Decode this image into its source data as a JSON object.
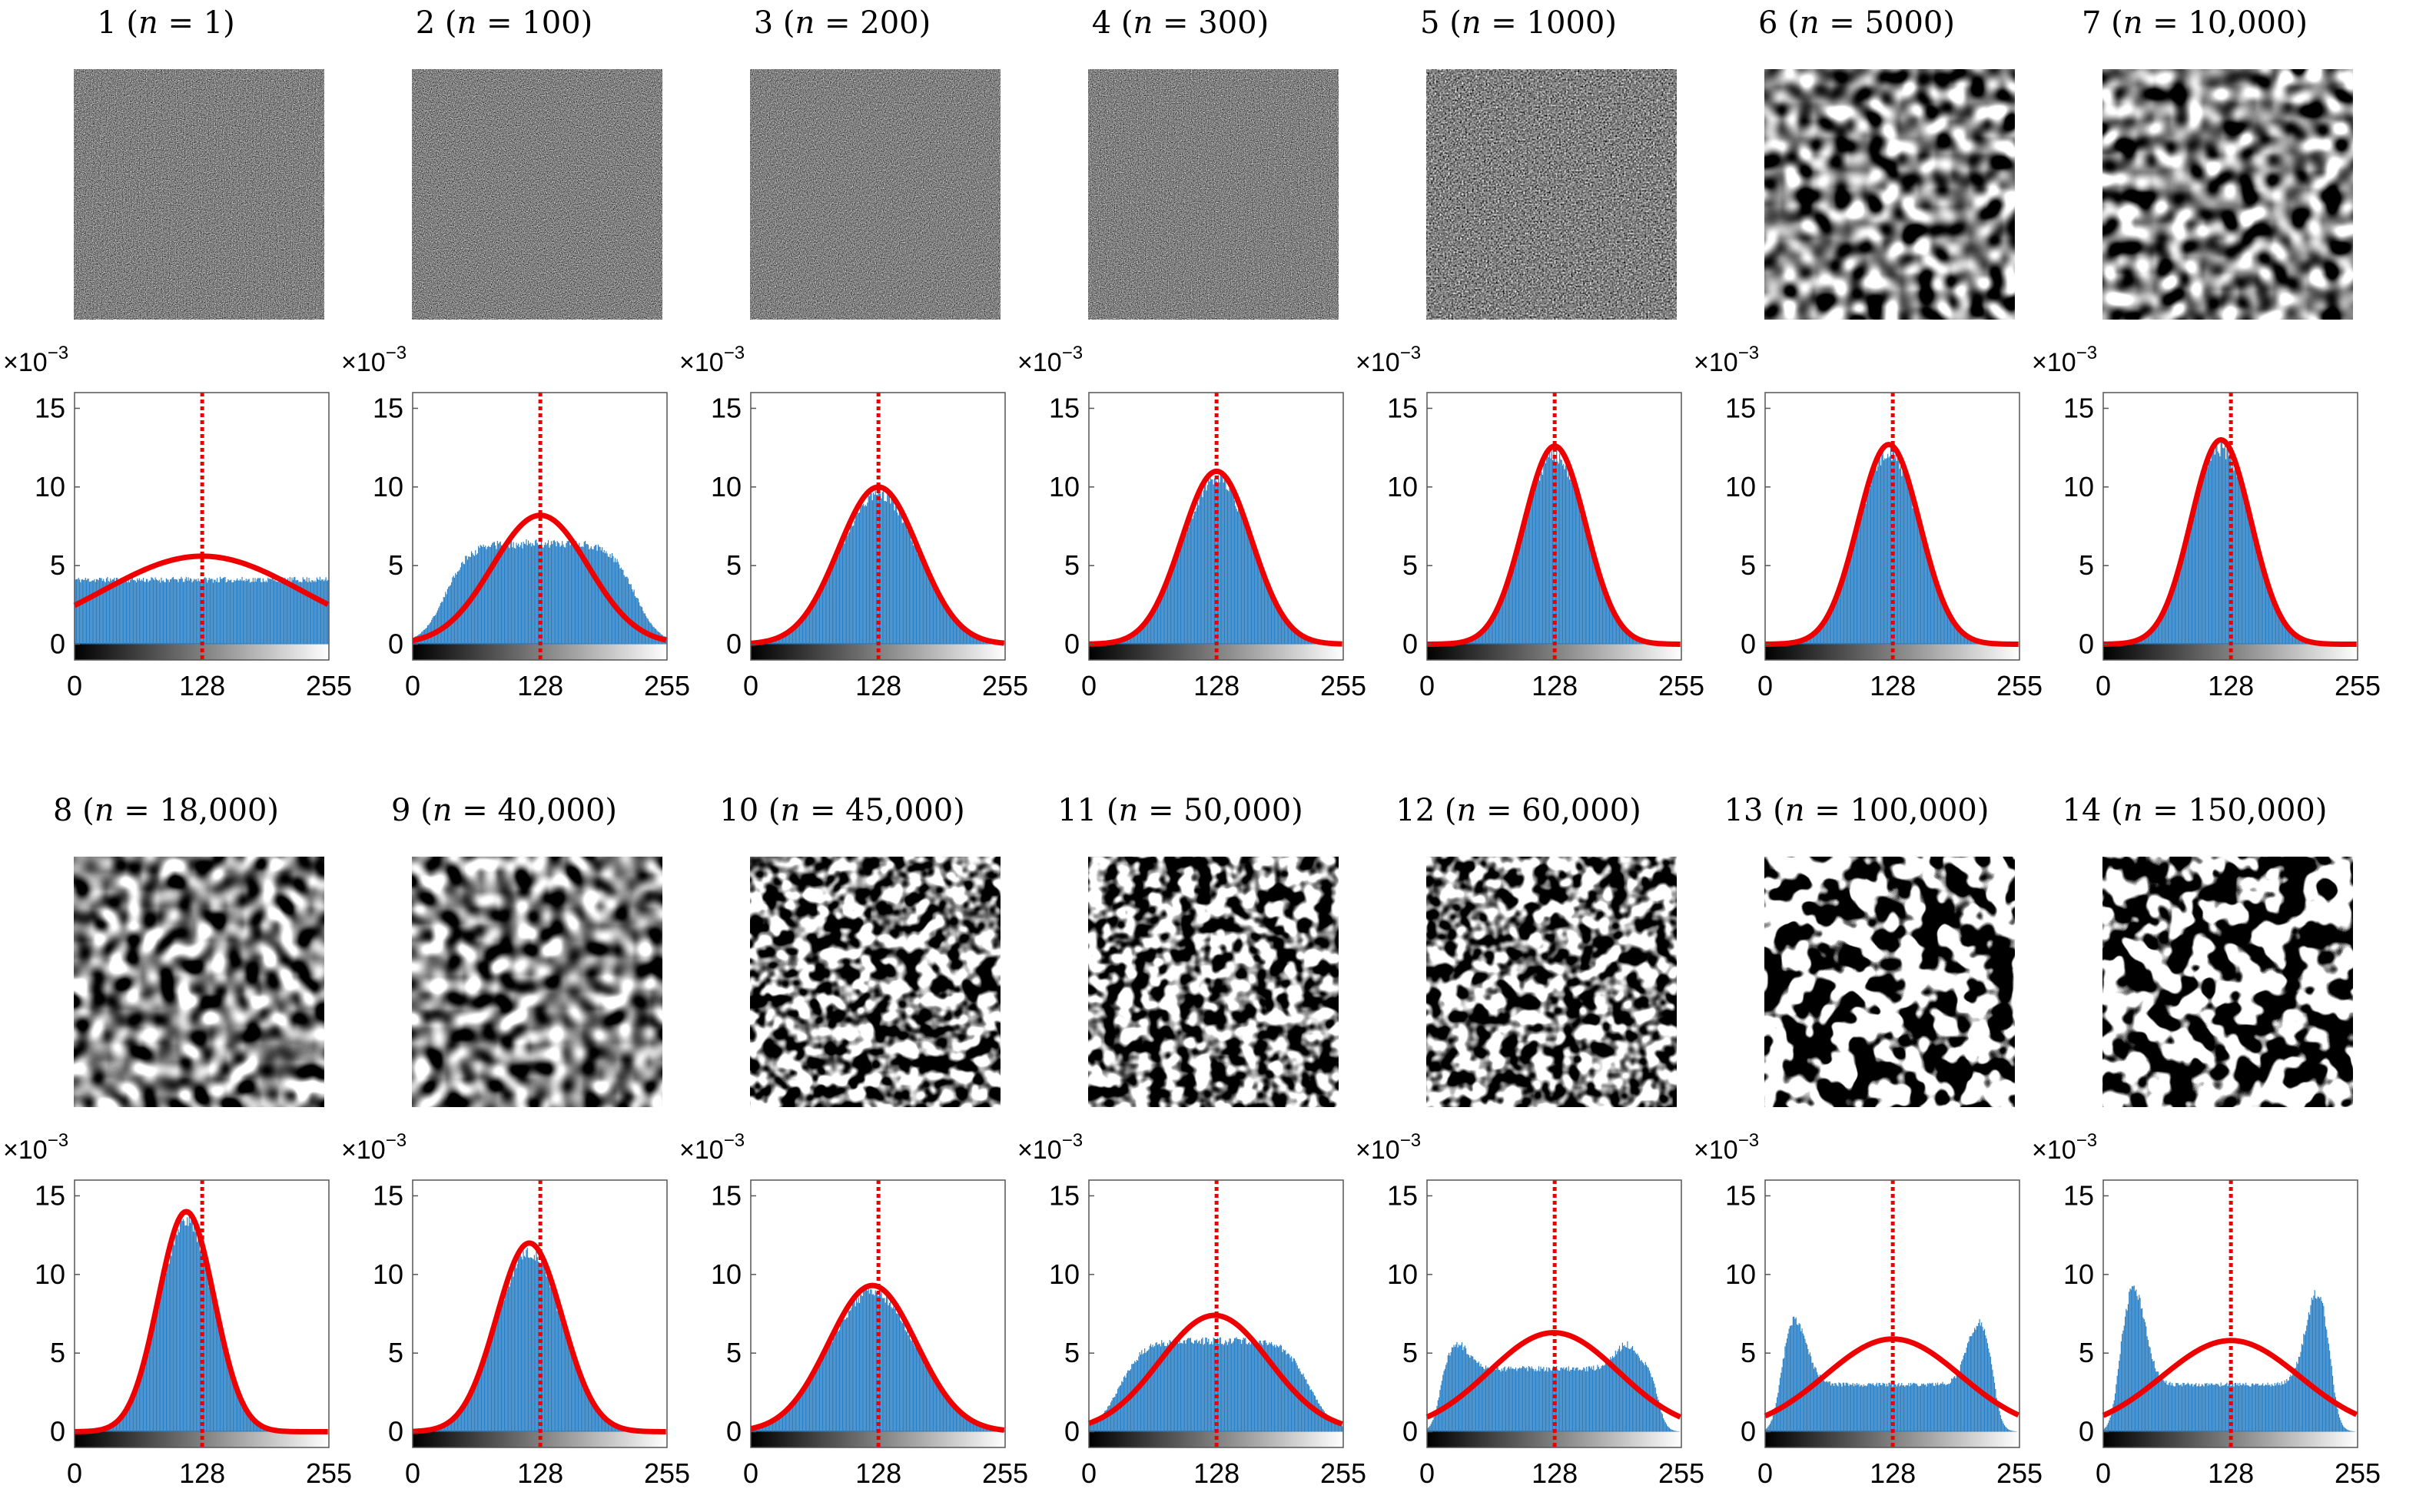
{
  "colors": {
    "bar": "#2a7fc4",
    "fit": "#ee0000",
    "mean_line": "#ee0000",
    "axis": "#222222"
  },
  "axis_common": {
    "y_multiplier": "×10",
    "y_exponent": "−3",
    "ylim": [
      -1,
      16
    ],
    "y_ticks": [
      "0",
      "5",
      "10",
      "15"
    ],
    "xlim": [
      0,
      255
    ],
    "x_ticks": [
      "0",
      "128",
      "255"
    ],
    "colorbar": "grayscale 0-255"
  },
  "chart_data": [
    {
      "type": "bar",
      "panel": "1",
      "n": "1",
      "pattern": "noise",
      "hist_kind": "uniform",
      "mean": 128,
      "peak_y": 5.6,
      "sigma": 100,
      "title": "1 (n = 1)",
      "xlabel": "",
      "ylabel": ""
    },
    {
      "type": "bar",
      "panel": "2",
      "n": "100",
      "pattern": "noise",
      "hist_kind": "plateau",
      "mean": 128,
      "peak_y": 8.2,
      "sigma": 48,
      "title": "2 (n = 100)",
      "xlabel": "",
      "ylabel": ""
    },
    {
      "type": "bar",
      "panel": "3",
      "n": "200",
      "pattern": "noise",
      "hist_kind": "gauss",
      "mean": 128,
      "peak_y": 10.0,
      "sigma": 40,
      "title": "3 (n = 200)",
      "xlabel": "",
      "ylabel": ""
    },
    {
      "type": "bar",
      "panel": "4",
      "n": "300",
      "pattern": "noise",
      "hist_kind": "gauss",
      "mean": 128,
      "peak_y": 11.0,
      "sigma": 35,
      "title": "4 (n = 300)",
      "xlabel": "",
      "ylabel": ""
    },
    {
      "type": "bar",
      "panel": "5",
      "n": "1000",
      "pattern": "noise",
      "hist_kind": "gauss",
      "mean": 128,
      "peak_y": 12.6,
      "sigma": 31,
      "title": "5 (n = 1000)",
      "xlabel": "",
      "ylabel": ""
    },
    {
      "type": "bar",
      "panel": "6",
      "n": "5000",
      "pattern": "blobs",
      "hist_kind": "gauss",
      "mean": 124,
      "peak_y": 12.7,
      "sigma": 31,
      "title": "6 (n = 5000)",
      "xlabel": "",
      "ylabel": ""
    },
    {
      "type": "bar",
      "panel": "7",
      "n": "10,000",
      "pattern": "blobs",
      "hist_kind": "gauss",
      "mean": 118,
      "peak_y": 13.0,
      "sigma": 30,
      "title": "7 (n = 10,000)",
      "xlabel": "",
      "ylabel": ""
    },
    {
      "type": "bar",
      "panel": "8",
      "n": "18,000",
      "pattern": "blobs",
      "hist_kind": "gauss",
      "mean": 112,
      "peak_y": 14.0,
      "sigma": 28,
      "title": "8 (n = 18,000)",
      "xlabel": "",
      "ylabel": ""
    },
    {
      "type": "bar",
      "panel": "9",
      "n": "40,000",
      "pattern": "blobs",
      "hist_kind": "gauss",
      "mean": 117,
      "peak_y": 12.0,
      "sigma": 33,
      "title": "9 (n = 40,000)",
      "xlabel": "",
      "ylabel": ""
    },
    {
      "type": "bar",
      "panel": "10",
      "n": "45,000",
      "pattern": "stripes",
      "hist_kind": "gauss",
      "mean": 122,
      "peak_y": 9.3,
      "sigma": 44,
      "title": "10 (n = 45,000)",
      "xlabel": "",
      "ylabel": ""
    },
    {
      "type": "bar",
      "panel": "11",
      "n": "50,000",
      "pattern": "stripes",
      "hist_kind": "plateau",
      "mean": 126,
      "peak_y": 7.4,
      "sigma": 55,
      "title": "11 (n = 50,000)",
      "xlabel": "",
      "ylabel": ""
    },
    {
      "type": "bar",
      "panel": "12",
      "n": "60,000",
      "pattern": "stripes",
      "hist_kind": "bimodal",
      "mean": 127,
      "peak_y": 6.3,
      "sigma": 65,
      "title": "12 (n = 60,000)",
      "xlabel": "",
      "ylabel": ""
    },
    {
      "type": "bar",
      "panel": "13",
      "n": "100,000",
      "pattern": "labyrinth",
      "hist_kind": "bimodal",
      "mean": 128,
      "peak_y": 5.9,
      "sigma": 68,
      "title": "13 (n = 100,000)",
      "xlabel": "",
      "ylabel": ""
    },
    {
      "type": "bar",
      "panel": "14",
      "n": "150,000",
      "pattern": "labyrinth",
      "hist_kind": "bimodal",
      "mean": 128,
      "peak_y": 5.8,
      "sigma": 69,
      "title": "14 (n = 150,000)",
      "xlabel": "",
      "ylabel": ""
    }
  ]
}
